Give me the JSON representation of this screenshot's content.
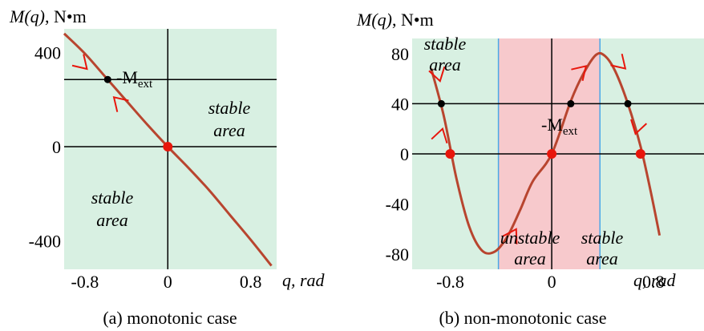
{
  "chart_data": [
    {
      "type": "line",
      "caption": "(a) monotonic case",
      "ylabel_fn": "M(q)",
      "ylabel_unit": ", N•m",
      "xlabel": "q, rad",
      "xlim": [
        -1.0,
        1.05
      ],
      "ylim": [
        -520,
        500
      ],
      "x_ticks": [
        {
          "value": -0.8,
          "label": "-0.8"
        },
        {
          "value": 0,
          "label": "0"
        },
        {
          "value": 0.8,
          "label": "0.8"
        }
      ],
      "y_ticks": [
        {
          "value": 400,
          "label": "400"
        },
        {
          "value": 0,
          "label": "0"
        },
        {
          "value": -400,
          "label": "-400"
        }
      ],
      "series": [
        {
          "color": "#b8452f",
          "x": [
            -1.0,
            -0.8,
            -0.6,
            -0.4,
            -0.2,
            0.0,
            0.2,
            0.4,
            0.6,
            0.8,
            1.0
          ],
          "y": [
            480,
            395,
            295,
            195,
            95,
            0,
            -90,
            -185,
            -290,
            -395,
            -505
          ]
        }
      ],
      "equilibrium_points": [
        {
          "x": 0.0,
          "y": 0,
          "kind": "unstable",
          "color": "#e8160c"
        },
        {
          "x": -0.58,
          "y": 285,
          "kind": "stable",
          "color": "#000000"
        }
      ],
      "annotation": {
        "text": "-M",
        "subscript": "ext",
        "line_y": 285
      },
      "areas": [
        {
          "label": [
            "stable",
            "area"
          ],
          "color": "#1414d6"
        },
        {
          "label": [
            "stable",
            "area"
          ],
          "color": "#1414d6"
        }
      ],
      "background": "#d8f0e2",
      "arrow_color": "#e8160c"
    },
    {
      "type": "line",
      "caption": "(b) non-monotonic case",
      "ylabel_fn": "M(q)",
      "ylabel_unit": ", N•m",
      "xlabel": "q, rad",
      "xlim": [
        -1.1,
        1.2
      ],
      "ylim": [
        -92,
        92
      ],
      "x_ticks": [
        {
          "value": -0.8,
          "label": "-0.8"
        },
        {
          "value": 0,
          "label": "0"
        },
        {
          "value": 0.8,
          "label": "0.8"
        }
      ],
      "y_ticks": [
        {
          "value": 80,
          "label": "80"
        },
        {
          "value": 40,
          "label": "40"
        },
        {
          "value": 0,
          "label": "0"
        },
        {
          "value": -40,
          "label": "-40"
        },
        {
          "value": -80,
          "label": "-80"
        }
      ],
      "series": [
        {
          "color": "#b8452f",
          "x": [
            -0.95,
            -0.85,
            -0.75,
            -0.65,
            -0.55,
            -0.45,
            -0.35,
            -0.25,
            -0.15,
            0.0,
            0.15,
            0.25,
            0.35,
            0.42,
            0.5,
            0.6,
            0.7,
            0.78,
            0.85
          ],
          "y": [
            68,
            30,
            -20,
            -58,
            -77,
            -78,
            -66,
            -45,
            -22,
            0,
            42,
            64,
            79,
            78,
            66,
            40,
            6,
            -30,
            -65
          ]
        }
      ],
      "equilibrium_points": [
        {
          "x": -0.8,
          "y": 0,
          "kind": "stable",
          "color": "#e8160c"
        },
        {
          "x": 0.0,
          "y": 0,
          "kind": "unstable",
          "color": "#e8160c"
        },
        {
          "x": 0.7,
          "y": 0,
          "kind": "stable",
          "color": "#e8160c"
        },
        {
          "x": -0.87,
          "y": 40,
          "kind": "stable",
          "color": "#000000"
        },
        {
          "x": 0.15,
          "y": 40,
          "kind": "unstable",
          "color": "#000000"
        },
        {
          "x": 0.6,
          "y": 40,
          "kind": "stable",
          "color": "#000000"
        }
      ],
      "annotation": {
        "text": "-M",
        "subscript": "ext",
        "line_y": 40
      },
      "regions": [
        {
          "from": -1.1,
          "to": -0.42,
          "kind": "stable"
        },
        {
          "from": -0.42,
          "to": 0.38,
          "kind": "unstable"
        },
        {
          "from": 0.38,
          "to": 1.2,
          "kind": "stable"
        }
      ],
      "areas": [
        {
          "label": [
            "stable",
            "area"
          ],
          "color": "#1414d6"
        },
        {
          "label": [
            "unstable",
            "area"
          ],
          "color": "#e8160c"
        },
        {
          "label": [
            "stable",
            "area"
          ],
          "color": "#1414d6"
        }
      ],
      "stable_color": "#d8f0e2",
      "unstable_color": "#f7c9cc",
      "boundary_color": "#4aa8e8",
      "arrow_color": "#e8160c"
    }
  ]
}
